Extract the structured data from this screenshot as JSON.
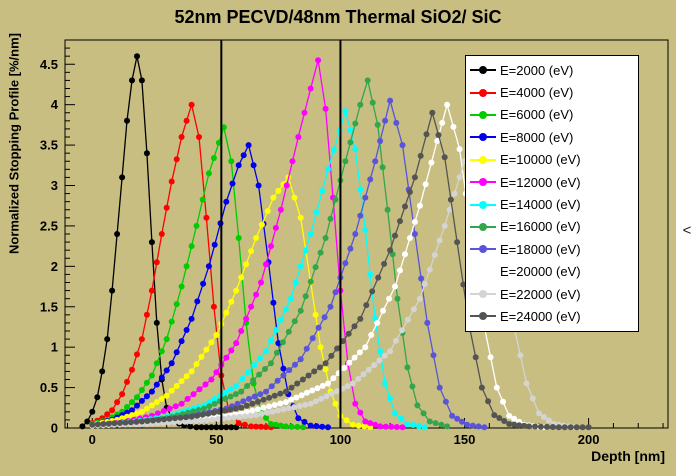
{
  "ui": {
    "side_glyph": "<"
  },
  "chart_data": {
    "type": "scatter-line",
    "title": "52nm PECVD/48nm Thermal SiO2/ SiC",
    "xlabel": "Depth [nm]",
    "ylabel": "Normalized Stopping Profile [%/nm]",
    "xlim": [
      -11,
      232
    ],
    "ylim": [
      0,
      4.8
    ],
    "x_ticks": [
      0,
      50,
      100,
      150,
      200
    ],
    "y_ticks": [
      0,
      0.5,
      1,
      1.5,
      2,
      2.5,
      3,
      3.5,
      4,
      4.5
    ],
    "grid": false,
    "legend_position": "top-right",
    "background_color": "#c8be82",
    "boundary_lines_nm": [
      52,
      100
    ],
    "series": [
      {
        "name": "E=2000 (eV)",
        "color": "#000000",
        "points": [
          [
            -4,
            0.02
          ],
          [
            -2,
            0.08
          ],
          [
            0,
            0.2
          ],
          [
            2,
            0.38
          ],
          [
            4,
            0.7
          ],
          [
            6,
            1.1
          ],
          [
            8,
            1.7
          ],
          [
            10,
            2.4
          ],
          [
            12,
            3.1
          ],
          [
            14,
            3.8
          ],
          [
            16,
            4.3
          ],
          [
            18,
            4.6
          ],
          [
            20,
            4.3
          ],
          [
            22,
            3.4
          ],
          [
            24,
            2.3
          ],
          [
            26,
            1.3
          ],
          [
            28,
            0.6
          ],
          [
            30,
            0.25
          ],
          [
            33,
            0.08
          ],
          [
            37,
            0.03
          ],
          [
            42,
            0.01
          ],
          [
            50,
            0.01
          ],
          [
            58,
            0.01
          ]
        ]
      },
      {
        "name": "E=4000 (eV)",
        "color": "#ff0000",
        "points": [
          [
            0,
            0.06
          ],
          [
            4,
            0.12
          ],
          [
            8,
            0.22
          ],
          [
            12,
            0.42
          ],
          [
            16,
            0.72
          ],
          [
            20,
            1.1
          ],
          [
            24,
            1.7
          ],
          [
            28,
            2.4
          ],
          [
            32,
            3.05
          ],
          [
            36,
            3.6
          ],
          [
            40,
            4.0
          ],
          [
            43,
            3.6
          ],
          [
            46,
            2.6
          ],
          [
            49,
            1.5
          ],
          [
            52,
            0.65
          ],
          [
            55,
            0.22
          ],
          [
            59,
            0.06
          ],
          [
            64,
            0.02
          ],
          [
            72,
            0.01
          ]
        ]
      },
      {
        "name": "E=6000 (eV)",
        "color": "#00cc00",
        "points": [
          [
            0,
            0.05
          ],
          [
            6,
            0.1
          ],
          [
            12,
            0.2
          ],
          [
            18,
            0.38
          ],
          [
            24,
            0.65
          ],
          [
            30,
            1.1
          ],
          [
            36,
            1.75
          ],
          [
            42,
            2.5
          ],
          [
            47,
            3.15
          ],
          [
            53,
            3.72
          ],
          [
            56,
            3.3
          ],
          [
            59,
            2.35
          ],
          [
            62,
            1.3
          ],
          [
            65,
            0.55
          ],
          [
            68,
            0.2
          ],
          [
            72,
            0.05
          ],
          [
            78,
            0.02
          ],
          [
            85,
            0.01
          ]
        ]
      },
      {
        "name": "E=8000 (eV)",
        "color": "#0000ee",
        "points": [
          [
            0,
            0.04
          ],
          [
            8,
            0.1
          ],
          [
            16,
            0.22
          ],
          [
            24,
            0.45
          ],
          [
            32,
            0.8
          ],
          [
            40,
            1.35
          ],
          [
            47,
            2.0
          ],
          [
            54,
            2.8
          ],
          [
            59,
            3.25
          ],
          [
            63,
            3.5
          ],
          [
            67,
            3.0
          ],
          [
            71,
            2.05
          ],
          [
            75,
            1.05
          ],
          [
            79,
            0.42
          ],
          [
            83,
            0.12
          ],
          [
            88,
            0.03
          ],
          [
            95,
            0.01
          ]
        ]
      },
      {
        "name": "E=10000 (eV)",
        "color": "#ffff00",
        "points": [
          [
            0,
            0.04
          ],
          [
            10,
            0.1
          ],
          [
            20,
            0.2
          ],
          [
            30,
            0.4
          ],
          [
            40,
            0.7
          ],
          [
            50,
            1.15
          ],
          [
            58,
            1.7
          ],
          [
            66,
            2.35
          ],
          [
            73,
            2.85
          ],
          [
            79,
            3.1
          ],
          [
            84,
            2.6
          ],
          [
            88,
            1.8
          ],
          [
            92,
            1.0
          ],
          [
            96,
            0.45
          ],
          [
            100,
            0.15
          ],
          [
            105,
            0.04
          ],
          [
            112,
            0.01
          ]
        ]
      },
      {
        "name": "E=12000 (eV)",
        "color": "#ff00ff",
        "points": [
          [
            0,
            0.03
          ],
          [
            12,
            0.07
          ],
          [
            24,
            0.15
          ],
          [
            36,
            0.3
          ],
          [
            48,
            0.6
          ],
          [
            58,
            1.05
          ],
          [
            68,
            1.8
          ],
          [
            76,
            2.7
          ],
          [
            83,
            3.6
          ],
          [
            88,
            4.2
          ],
          [
            91,
            4.55
          ],
          [
            94,
            3.95
          ],
          [
            97,
            2.85
          ],
          [
            100,
            1.7
          ],
          [
            103,
            0.8
          ],
          [
            106,
            0.3
          ],
          [
            110,
            0.08
          ],
          [
            116,
            0.02
          ],
          [
            125,
            0.01
          ]
        ]
      },
      {
        "name": "E=14000 (eV)",
        "color": "#00ffff",
        "points": [
          [
            0,
            0.03
          ],
          [
            15,
            0.07
          ],
          [
            30,
            0.14
          ],
          [
            45,
            0.28
          ],
          [
            58,
            0.52
          ],
          [
            70,
            0.95
          ],
          [
            80,
            1.6
          ],
          [
            88,
            2.4
          ],
          [
            95,
            3.2
          ],
          [
            102,
            3.92
          ],
          [
            106,
            3.45
          ],
          [
            110,
            2.45
          ],
          [
            114,
            1.35
          ],
          [
            118,
            0.55
          ],
          [
            122,
            0.18
          ],
          [
            127,
            0.05
          ],
          [
            134,
            0.01
          ]
        ]
      },
      {
        "name": "E=16000 (eV)",
        "color": "#33a64c",
        "points": [
          [
            0,
            0.03
          ],
          [
            15,
            0.06
          ],
          [
            30,
            0.12
          ],
          [
            45,
            0.24
          ],
          [
            60,
            0.45
          ],
          [
            72,
            0.8
          ],
          [
            84,
            1.45
          ],
          [
            94,
            2.35
          ],
          [
            102,
            3.3
          ],
          [
            108,
            4.0
          ],
          [
            111,
            4.3
          ],
          [
            115,
            3.75
          ],
          [
            119,
            2.7
          ],
          [
            123,
            1.6
          ],
          [
            127,
            0.75
          ],
          [
            131,
            0.28
          ],
          [
            136,
            0.08
          ],
          [
            143,
            0.02
          ]
        ]
      },
      {
        "name": "E=18000 (eV)",
        "color": "#5954d8",
        "points": [
          [
            0,
            0.03
          ],
          [
            18,
            0.06
          ],
          [
            36,
            0.12
          ],
          [
            54,
            0.24
          ],
          [
            70,
            0.45
          ],
          [
            84,
            0.85
          ],
          [
            96,
            1.5
          ],
          [
            106,
            2.4
          ],
          [
            114,
            3.3
          ],
          [
            120,
            4.05
          ],
          [
            125,
            3.5
          ],
          [
            130,
            2.4
          ],
          [
            135,
            1.3
          ],
          [
            140,
            0.5
          ],
          [
            145,
            0.15
          ],
          [
            151,
            0.04
          ],
          [
            158,
            0.01
          ]
        ]
      },
      {
        "name": "E=20000 (eV)",
        "color": "#ffffff",
        "points": [
          [
            0,
            0.03
          ],
          [
            20,
            0.06
          ],
          [
            40,
            0.1
          ],
          [
            60,
            0.18
          ],
          [
            78,
            0.32
          ],
          [
            95,
            0.55
          ],
          [
            110,
            1.0
          ],
          [
            122,
            1.75
          ],
          [
            132,
            2.75
          ],
          [
            139,
            3.55
          ],
          [
            143,
            4.0
          ],
          [
            148,
            3.45
          ],
          [
            153,
            2.35
          ],
          [
            158,
            1.25
          ],
          [
            163,
            0.5
          ],
          [
            168,
            0.15
          ],
          [
            174,
            0.04
          ],
          [
            182,
            0.01
          ]
        ]
      },
      {
        "name": "E=22000 (eV)",
        "color": "#d4d4d4",
        "points": [
          [
            0,
            0.03
          ],
          [
            22,
            0.05
          ],
          [
            44,
            0.09
          ],
          [
            66,
            0.16
          ],
          [
            88,
            0.3
          ],
          [
            105,
            0.55
          ],
          [
            120,
            0.95
          ],
          [
            132,
            1.6
          ],
          [
            142,
            2.5
          ],
          [
            150,
            3.3
          ],
          [
            155,
            3.85
          ],
          [
            160,
            3.35
          ],
          [
            165,
            2.3
          ],
          [
            170,
            1.25
          ],
          [
            175,
            0.55
          ],
          [
            180,
            0.18
          ],
          [
            186,
            0.05
          ],
          [
            194,
            0.01
          ]
        ]
      },
      {
        "name": "E=24000 (eV)",
        "color": "#545454",
        "points": [
          [
            0,
            0.04
          ],
          [
            20,
            0.08
          ],
          [
            40,
            0.14
          ],
          [
            60,
            0.25
          ],
          [
            78,
            0.45
          ],
          [
            94,
            0.8
          ],
          [
            108,
            1.35
          ],
          [
            120,
            2.2
          ],
          [
            130,
            3.1
          ],
          [
            137,
            3.9
          ],
          [
            142,
            3.35
          ],
          [
            147,
            2.3
          ],
          [
            152,
            1.25
          ],
          [
            157,
            0.5
          ],
          [
            162,
            0.16
          ],
          [
            168,
            0.05
          ],
          [
            176,
            0.02
          ],
          [
            188,
            0.01
          ],
          [
            200,
            0.01
          ]
        ]
      }
    ]
  }
}
